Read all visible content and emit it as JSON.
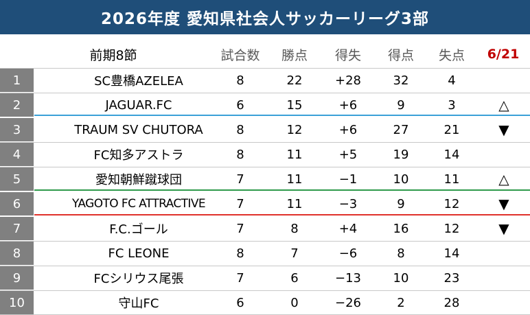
{
  "title": "2026年度 愛知県社会人サッカーリーグ3部",
  "header": {
    "round": "前期8節",
    "games": "試合数",
    "points": "勝点",
    "goal_diff": "得失",
    "goals_for": "得点",
    "goals_against": "失点",
    "date": "6/21"
  },
  "colors": {
    "title_bg": "#1f4e79",
    "rank_bg": "#808080",
    "promotion_line": "#3aa0d8",
    "playoff_line": "#2e9a4b",
    "relegation_line": "#e0302a",
    "date_text": "#c00000"
  },
  "rows": [
    {
      "rank": "1",
      "team": "SC豊橋AZELEA",
      "games": "8",
      "points": "22",
      "diff": "+28",
      "gf": "32",
      "ga": "4",
      "trend": ""
    },
    {
      "rank": "2",
      "team": "JAGUAR.FC",
      "games": "6",
      "points": "15",
      "diff": "+6",
      "gf": "9",
      "ga": "3",
      "trend": "△"
    },
    {
      "rank": "3",
      "team": "TRAUM SV CHUTORA",
      "games": "8",
      "points": "12",
      "diff": "+6",
      "gf": "27",
      "ga": "21",
      "trend": "▼"
    },
    {
      "rank": "4",
      "team": "FC知多アストラ",
      "games": "8",
      "points": "11",
      "diff": "+5",
      "gf": "19",
      "ga": "14",
      "trend": ""
    },
    {
      "rank": "5",
      "team": "愛知朝鮮蹴球団",
      "games": "7",
      "points": "11",
      "diff": "−1",
      "gf": "10",
      "ga": "11",
      "trend": "△"
    },
    {
      "rank": "6",
      "team": "YAGOTO FC ATTRACTIVE",
      "games": "7",
      "points": "11",
      "diff": "−3",
      "gf": "9",
      "ga": "12",
      "trend": "▼"
    },
    {
      "rank": "7",
      "team": "F.C.ゴール",
      "games": "7",
      "points": "8",
      "diff": "+4",
      "gf": "16",
      "ga": "12",
      "trend": "▼"
    },
    {
      "rank": "8",
      "team": "FC LEONE",
      "games": "8",
      "points": "7",
      "diff": "−6",
      "gf": "8",
      "ga": "14",
      "trend": ""
    },
    {
      "rank": "9",
      "team": "FCシリウス尾張",
      "games": "7",
      "points": "6",
      "diff": "−13",
      "gf": "10",
      "ga": "23",
      "trend": ""
    },
    {
      "rank": "10",
      "team": "守山FC",
      "games": "6",
      "points": "0",
      "diff": "−26",
      "gf": "2",
      "ga": "28",
      "trend": ""
    }
  ]
}
